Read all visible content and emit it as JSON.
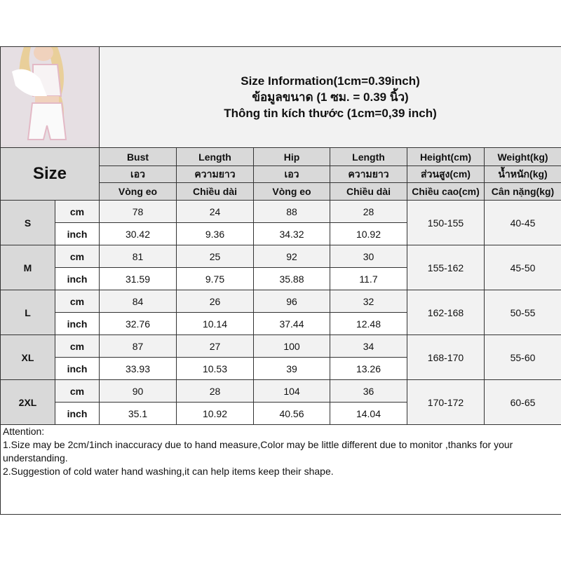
{
  "title_lines": [
    "Size Information(1cm=0.39inch)",
    "ข้อมูลขนาด (1 ซม. = 0.39 นิ้ว)",
    "Thông tin kích thước (1cm=0,39 inch)"
  ],
  "size_label": "Size",
  "headers": [
    [
      "Bust",
      "เอว",
      "Vòng eo"
    ],
    [
      "Length",
      "ความยาว",
      "Chiều dài"
    ],
    [
      "Hip",
      "เอว",
      "Vòng eo"
    ],
    [
      "Length",
      "ความยาว",
      "Chiều dài"
    ],
    [
      "Height(cm)",
      "ส่วนสูง(cm)",
      "Chiều cao(cm)"
    ],
    [
      "Weight(kg)",
      "น้ำหนัก(kg)",
      "Cân nặng(kg)"
    ]
  ],
  "units": {
    "cm": "cm",
    "inch": "inch"
  },
  "rows": [
    {
      "size": "S",
      "cm": [
        "78",
        "24",
        "88",
        "28"
      ],
      "inch": [
        "30.42",
        "9.36",
        "34.32",
        "10.92"
      ],
      "height": "150-155",
      "weight": "40-45"
    },
    {
      "size": "M",
      "cm": [
        "81",
        "25",
        "92",
        "30"
      ],
      "inch": [
        "31.59",
        "9.75",
        "35.88",
        "11.7"
      ],
      "height": "155-162",
      "weight": "45-50"
    },
    {
      "size": "L",
      "cm": [
        "84",
        "26",
        "96",
        "32"
      ],
      "inch": [
        "32.76",
        "10.14",
        "37.44",
        "12.48"
      ],
      "height": "162-168",
      "weight": "50-55"
    },
    {
      "size": "XL",
      "cm": [
        "87",
        "27",
        "100",
        "34"
      ],
      "inch": [
        "33.93",
        "10.53",
        "39",
        "13.26"
      ],
      "height": "168-170",
      "weight": "55-60"
    },
    {
      "size": "2XL",
      "cm": [
        "90",
        "28",
        "104",
        "36"
      ],
      "inch": [
        "35.1",
        "10.92",
        "40.56",
        "14.04"
      ],
      "height": "170-172",
      "weight": "60-65"
    }
  ],
  "attention": [
    "Attention:",
    "1.Size may be 2cm/1inch inaccuracy due to hand measure,Color may be little different due to monitor ,thanks for your understanding.",
    "2.Suggestion of cold water hand washing,it can help items keep their shape."
  ]
}
